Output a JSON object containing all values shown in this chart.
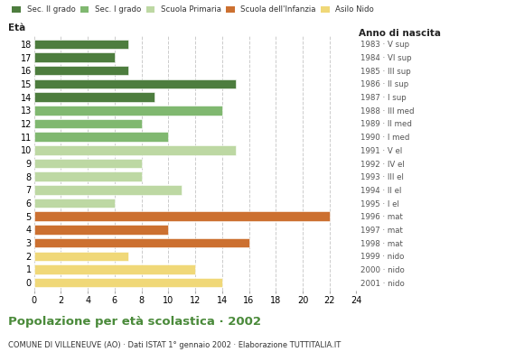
{
  "ages": [
    18,
    17,
    16,
    15,
    14,
    13,
    12,
    11,
    10,
    9,
    8,
    7,
    6,
    5,
    4,
    3,
    2,
    1,
    0
  ],
  "values": [
    7,
    6,
    7,
    15,
    9,
    14,
    8,
    10,
    15,
    8,
    8,
    11,
    6,
    22,
    10,
    16,
    7,
    12,
    14
  ],
  "categories": [
    "Sec. II grado",
    "Sec. II grado",
    "Sec. II grado",
    "Sec. II grado",
    "Sec. II grado",
    "Sec. I grado",
    "Sec. I grado",
    "Sec. I grado",
    "Scuola Primaria",
    "Scuola Primaria",
    "Scuola Primaria",
    "Scuola Primaria",
    "Scuola Primaria",
    "Scuola dell'Infanzia",
    "Scuola dell'Infanzia",
    "Scuola dell'Infanzia",
    "Asilo Nido",
    "Asilo Nido",
    "Asilo Nido"
  ],
  "right_labels": [
    "1983 · V sup",
    "1984 · VI sup",
    "1985 · III sup",
    "1986 · II sup",
    "1987 · I sup",
    "1988 · III med",
    "1989 · II med",
    "1990 · I med",
    "1991 · V el",
    "1992 · IV el",
    "1993 · III el",
    "1994 · II el",
    "1995 · I el",
    "1996 · mat",
    "1997 · mat",
    "1998 · mat",
    "1999 · nido",
    "2000 · nido",
    "2001 · nido"
  ],
  "colors": {
    "Sec. II grado": "#4d7d3e",
    "Sec. I grado": "#80b870",
    "Scuola Primaria": "#bdd8a3",
    "Scuola dell'Infanzia": "#cc7030",
    "Asilo Nido": "#f0d878"
  },
  "legend_order": [
    "Sec. II grado",
    "Sec. I grado",
    "Scuola Primaria",
    "Scuola dell'Infanzia",
    "Asilo Nido"
  ],
  "xlim": [
    0,
    24
  ],
  "xticks": [
    0,
    2,
    4,
    6,
    8,
    10,
    12,
    14,
    16,
    18,
    20,
    22,
    24
  ],
  "title": "Popolazione per età scolastica · 2002",
  "subtitle": "COMUNE DI VILLENEUVE (AO) · Dati ISTAT 1° gennaio 2002 · Elaborazione TUTTITALIA.IT",
  "ylabel": "Età",
  "right_axis_label": "Anno di nascita",
  "bar_height": 0.72,
  "background_color": "#ffffff",
  "grid_color": "#cccccc",
  "title_color": "#4a8a3a",
  "subtitle_color": "#333333"
}
